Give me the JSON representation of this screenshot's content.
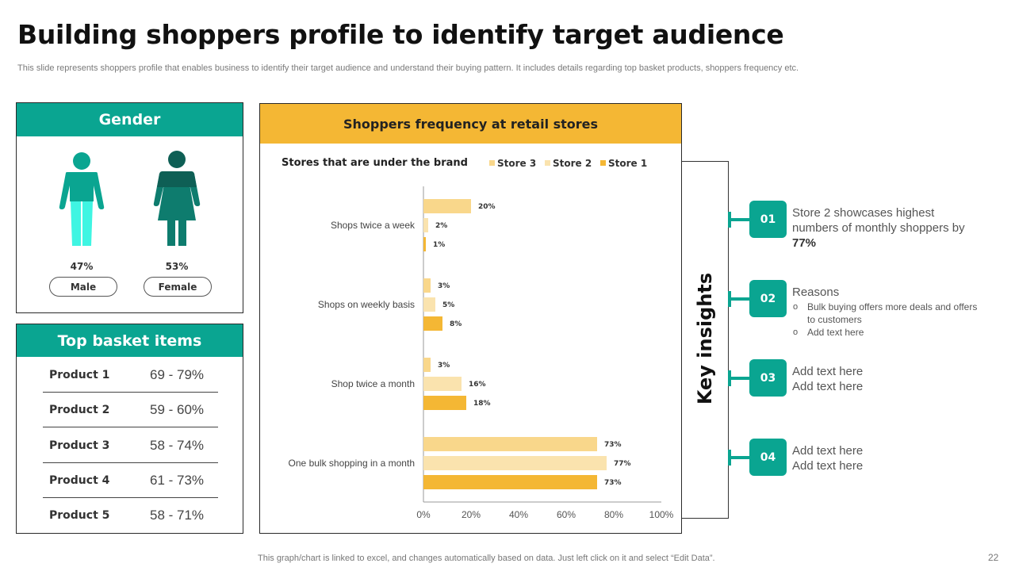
{
  "title": "Building shoppers profile to identify target audience",
  "subtitle": "This slide represents shoppers profile that enables business to identify their target audience and understand their buying pattern. It includes details regarding top basket products, shoppers frequency etc.",
  "gender": {
    "heading": "Gender",
    "male": {
      "label": "Male",
      "percent": "47%",
      "icon": "male-person-icon",
      "color": "#3ff5e2"
    },
    "female": {
      "label": "Female",
      "percent": "53%",
      "icon": "female-person-icon",
      "color": "#0e7c6e"
    }
  },
  "basket": {
    "heading": "Top basket items",
    "items": [
      {
        "name": "Product 1",
        "range": "69 - 79%"
      },
      {
        "name": "Product 2",
        "range": "59 - 60%"
      },
      {
        "name": "Product 3",
        "range": "58 - 74%"
      },
      {
        "name": "Product 4",
        "range": "61 - 73%"
      },
      {
        "name": "Product 5",
        "range": "58 - 71%"
      }
    ]
  },
  "chart_card": {
    "heading": "Shoppers frequency at retail stores"
  },
  "chart_data": {
    "type": "bar",
    "orientation": "horizontal",
    "title": "Stores that are under the brand",
    "categories": [
      "Shops twice a week",
      "Shops on weekly basis",
      "Shop twice a month",
      "One bulk shopping in a month"
    ],
    "series": [
      {
        "name": "Store 3",
        "values": [
          20,
          3,
          3,
          73
        ],
        "labels": [
          "20%",
          "3%",
          "3%",
          "73%"
        ],
        "color": "#f9d78b"
      },
      {
        "name": "Store 2",
        "values": [
          2,
          5,
          16,
          77
        ],
        "labels": [
          "2%",
          "5%",
          "16%",
          "77%"
        ],
        "color": "#fae3ae"
      },
      {
        "name": "Store 1",
        "values": [
          1,
          8,
          18,
          73
        ],
        "labels": [
          "1%",
          "8%",
          "18%",
          "73%"
        ],
        "color": "#f4b734"
      }
    ],
    "xlim": [
      0,
      100
    ],
    "xticks": [
      "0%",
      "20%",
      "40%",
      "60%",
      "80%",
      "100%"
    ],
    "grid": false,
    "legend": "top-right"
  },
  "insights": {
    "heading": "Key insights",
    "accent": "#0aa591",
    "items": [
      {
        "num": "01",
        "text": "Store 2 showcases highest numbers of monthly  shoppers by ",
        "highlight": "77%"
      },
      {
        "num": "02",
        "text": "Reasons",
        "bullets": [
          "Bulk buying offers more deals and offers  to customers",
          "Add text here"
        ]
      },
      {
        "num": "03",
        "line1": "Add text here",
        "line2": "Add text here"
      },
      {
        "num": "04",
        "line1": "Add text here",
        "line2": "Add text here"
      }
    ]
  },
  "footer": "This graph/chart is linked to excel,  and changes automatically based on data. Just left click on it and select “Edit Data”.",
  "page_number": "22"
}
